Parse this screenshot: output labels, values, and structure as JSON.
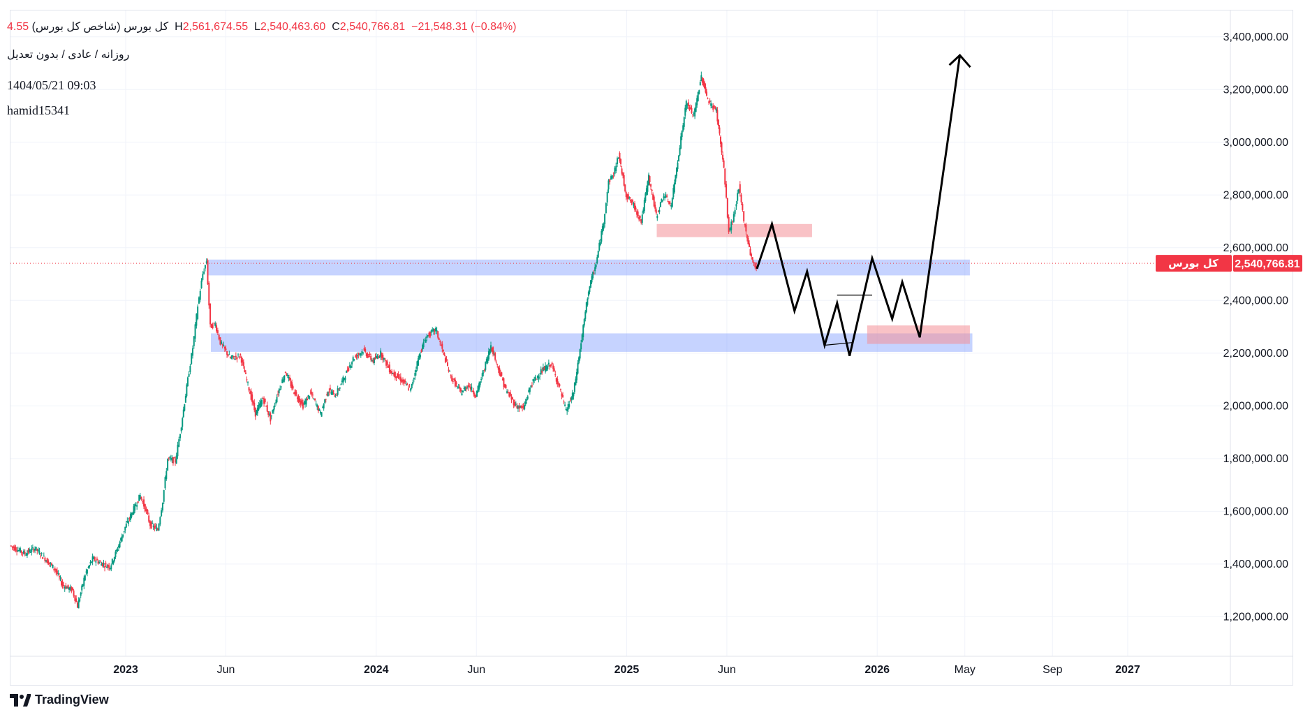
{
  "legend": {
    "symbol": "کل بورس (شاخص کل بورس)",
    "open_tail": "4.55",
    "high_label": "H",
    "high": "2,561,674.55",
    "low_label": "L",
    "low": "2,540,463.60",
    "close_label": "C",
    "close": "2,540,766.81",
    "change": "−21,548.31 (−0.84%)",
    "settings": "روزانه / عادی / بدون تعدیل",
    "date": "1404/05/21 09:03",
    "user": "hamid15341"
  },
  "price_tag": {
    "name": "کل بورس",
    "value": "2,540,766.81"
  },
  "footer": {
    "brand": "TradingView"
  },
  "colors": {
    "up": "#089981",
    "down": "#f23645",
    "zone_blue": "rgba(120,150,255,0.42)",
    "zone_red": "rgba(244,143,152,0.55)",
    "grid": "#f0f3fa"
  },
  "chart_data": {
    "type": "line",
    "title": "کل بورس (شاخص کل بورس)",
    "ylim": [
      1050000,
      3500000
    ],
    "y_ticks": [
      1200000,
      1400000,
      1600000,
      1800000,
      2000000,
      2200000,
      2400000,
      2600000,
      2800000,
      3000000,
      3200000,
      3400000
    ],
    "y_tick_labels": [
      "1,200,000.00",
      "1,400,000.00",
      "1,600,000.00",
      "1,800,000.00",
      "2,000,000.00",
      "2,200,000.00",
      "2,400,000.00",
      "2,600,000.00",
      "2,800,000.00",
      "3,000,000.00",
      "3,200,000.00",
      "3,400,000.00"
    ],
    "x_axis_labels": [
      {
        "label": "2023",
        "t": 0.0,
        "bold": true
      },
      {
        "label": "Jun",
        "t": 0.4,
        "bold": false
      },
      {
        "label": "2024",
        "t": 1.0,
        "bold": true
      },
      {
        "label": "Jun",
        "t": 1.4,
        "bold": false
      },
      {
        "label": "2025",
        "t": 2.0,
        "bold": true
      },
      {
        "label": "Jun",
        "t": 2.4,
        "bold": false
      },
      {
        "label": "2026",
        "t": 3.0,
        "bold": true
      },
      {
        "label": "May",
        "t": 3.35,
        "bold": false
      },
      {
        "label": "Sep",
        "t": 3.7,
        "bold": false
      },
      {
        "label": "2027",
        "t": 4.0,
        "bold": true
      }
    ],
    "xlim": [
      -0.46,
      4.41
    ],
    "last_price": 2540766.81,
    "series": [
      {
        "name": "کل بورس",
        "points": [
          [
            -0.46,
            1470000
          ],
          [
            -0.4,
            1440000
          ],
          [
            -0.36,
            1460000
          ],
          [
            -0.32,
            1420000
          ],
          [
            -0.28,
            1380000
          ],
          [
            -0.25,
            1320000
          ],
          [
            -0.21,
            1300000
          ],
          [
            -0.19,
            1240000
          ],
          [
            -0.16,
            1360000
          ],
          [
            -0.13,
            1420000
          ],
          [
            -0.09,
            1400000
          ],
          [
            -0.06,
            1390000
          ],
          [
            -0.03,
            1460000
          ],
          [
            0.0,
            1540000
          ],
          [
            0.03,
            1600000
          ],
          [
            0.06,
            1660000
          ],
          [
            0.08,
            1610000
          ],
          [
            0.1,
            1550000
          ],
          [
            0.13,
            1530000
          ],
          [
            0.15,
            1640000
          ],
          [
            0.17,
            1800000
          ],
          [
            0.2,
            1790000
          ],
          [
            0.22,
            1900000
          ],
          [
            0.25,
            2100000
          ],
          [
            0.27,
            2220000
          ],
          [
            0.29,
            2380000
          ],
          [
            0.31,
            2500000
          ],
          [
            0.325,
            2550000
          ],
          [
            0.34,
            2300000
          ],
          [
            0.36,
            2310000
          ],
          [
            0.38,
            2240000
          ],
          [
            0.42,
            2180000
          ],
          [
            0.46,
            2190000
          ],
          [
            0.49,
            2080000
          ],
          [
            0.52,
            1970000
          ],
          [
            0.55,
            2030000
          ],
          [
            0.58,
            1950000
          ],
          [
            0.61,
            2050000
          ],
          [
            0.64,
            2130000
          ],
          [
            0.67,
            2060000
          ],
          [
            0.71,
            2000000
          ],
          [
            0.74,
            2050000
          ],
          [
            0.78,
            1970000
          ],
          [
            0.81,
            2060000
          ],
          [
            0.84,
            2040000
          ],
          [
            0.87,
            2100000
          ],
          [
            0.91,
            2180000
          ],
          [
            0.95,
            2210000
          ],
          [
            0.99,
            2170000
          ],
          [
            1.02,
            2200000
          ],
          [
            1.06,
            2130000
          ],
          [
            1.1,
            2100000
          ],
          [
            1.14,
            2060000
          ],
          [
            1.17,
            2180000
          ],
          [
            1.2,
            2260000
          ],
          [
            1.24,
            2290000
          ],
          [
            1.27,
            2200000
          ],
          [
            1.3,
            2110000
          ],
          [
            1.34,
            2050000
          ],
          [
            1.37,
            2080000
          ],
          [
            1.4,
            2040000
          ],
          [
            1.43,
            2130000
          ],
          [
            1.46,
            2230000
          ],
          [
            1.49,
            2140000
          ],
          [
            1.52,
            2060000
          ],
          [
            1.56,
            2000000
          ],
          [
            1.59,
            1990000
          ],
          [
            1.62,
            2080000
          ],
          [
            1.66,
            2130000
          ],
          [
            1.7,
            2160000
          ],
          [
            1.73,
            2080000
          ],
          [
            1.76,
            1980000
          ],
          [
            1.79,
            2050000
          ],
          [
            1.82,
            2240000
          ],
          [
            1.85,
            2440000
          ],
          [
            1.88,
            2540000
          ],
          [
            1.91,
            2700000
          ],
          [
            1.93,
            2850000
          ],
          [
            1.95,
            2880000
          ],
          [
            1.97,
            2950000
          ],
          [
            2.0,
            2800000
          ],
          [
            2.03,
            2760000
          ],
          [
            2.06,
            2700000
          ],
          [
            2.09,
            2870000
          ],
          [
            2.12,
            2720000
          ],
          [
            2.15,
            2800000
          ],
          [
            2.18,
            2760000
          ],
          [
            2.21,
            2960000
          ],
          [
            2.24,
            3150000
          ],
          [
            2.27,
            3100000
          ],
          [
            2.3,
            3250000
          ],
          [
            2.33,
            3150000
          ],
          [
            2.36,
            3120000
          ],
          [
            2.39,
            2900000
          ],
          [
            2.41,
            2660000
          ],
          [
            2.43,
            2720000
          ],
          [
            2.45,
            2830000
          ],
          [
            2.47,
            2700000
          ],
          [
            2.5,
            2560000
          ],
          [
            2.52,
            2520000
          ]
        ]
      }
    ],
    "zones": [
      {
        "color": "blue",
        "t0": 0.325,
        "t1": 3.37,
        "y0": 2495000,
        "y1": 2555000
      },
      {
        "color": "blue",
        "t0": 0.34,
        "t1": 3.38,
        "y0": 2205000,
        "y1": 2275000
      },
      {
        "color": "red",
        "t0": 2.12,
        "t1": 2.74,
        "y0": 2640000,
        "y1": 2690000
      },
      {
        "color": "red",
        "t0": 2.96,
        "t1": 3.37,
        "y0": 2235000,
        "y1": 2305000
      }
    ],
    "projection": [
      [
        2.52,
        2520000
      ],
      [
        2.58,
        2690000
      ],
      [
        2.67,
        2360000
      ],
      [
        2.72,
        2510000
      ],
      [
        2.79,
        2230000
      ],
      [
        2.84,
        2390000
      ],
      [
        2.89,
        2190000
      ],
      [
        2.98,
        2560000
      ],
      [
        3.06,
        2330000
      ],
      [
        3.1,
        2470000
      ],
      [
        3.17,
        2260000
      ],
      [
        3.33,
        3330000
      ]
    ],
    "projection_minor_lines": [
      [
        [
          2.79,
          2230000
        ],
        [
          2.9,
          2240000
        ]
      ],
      [
        [
          2.84,
          2420000
        ],
        [
          2.98,
          2420000
        ]
      ]
    ]
  }
}
